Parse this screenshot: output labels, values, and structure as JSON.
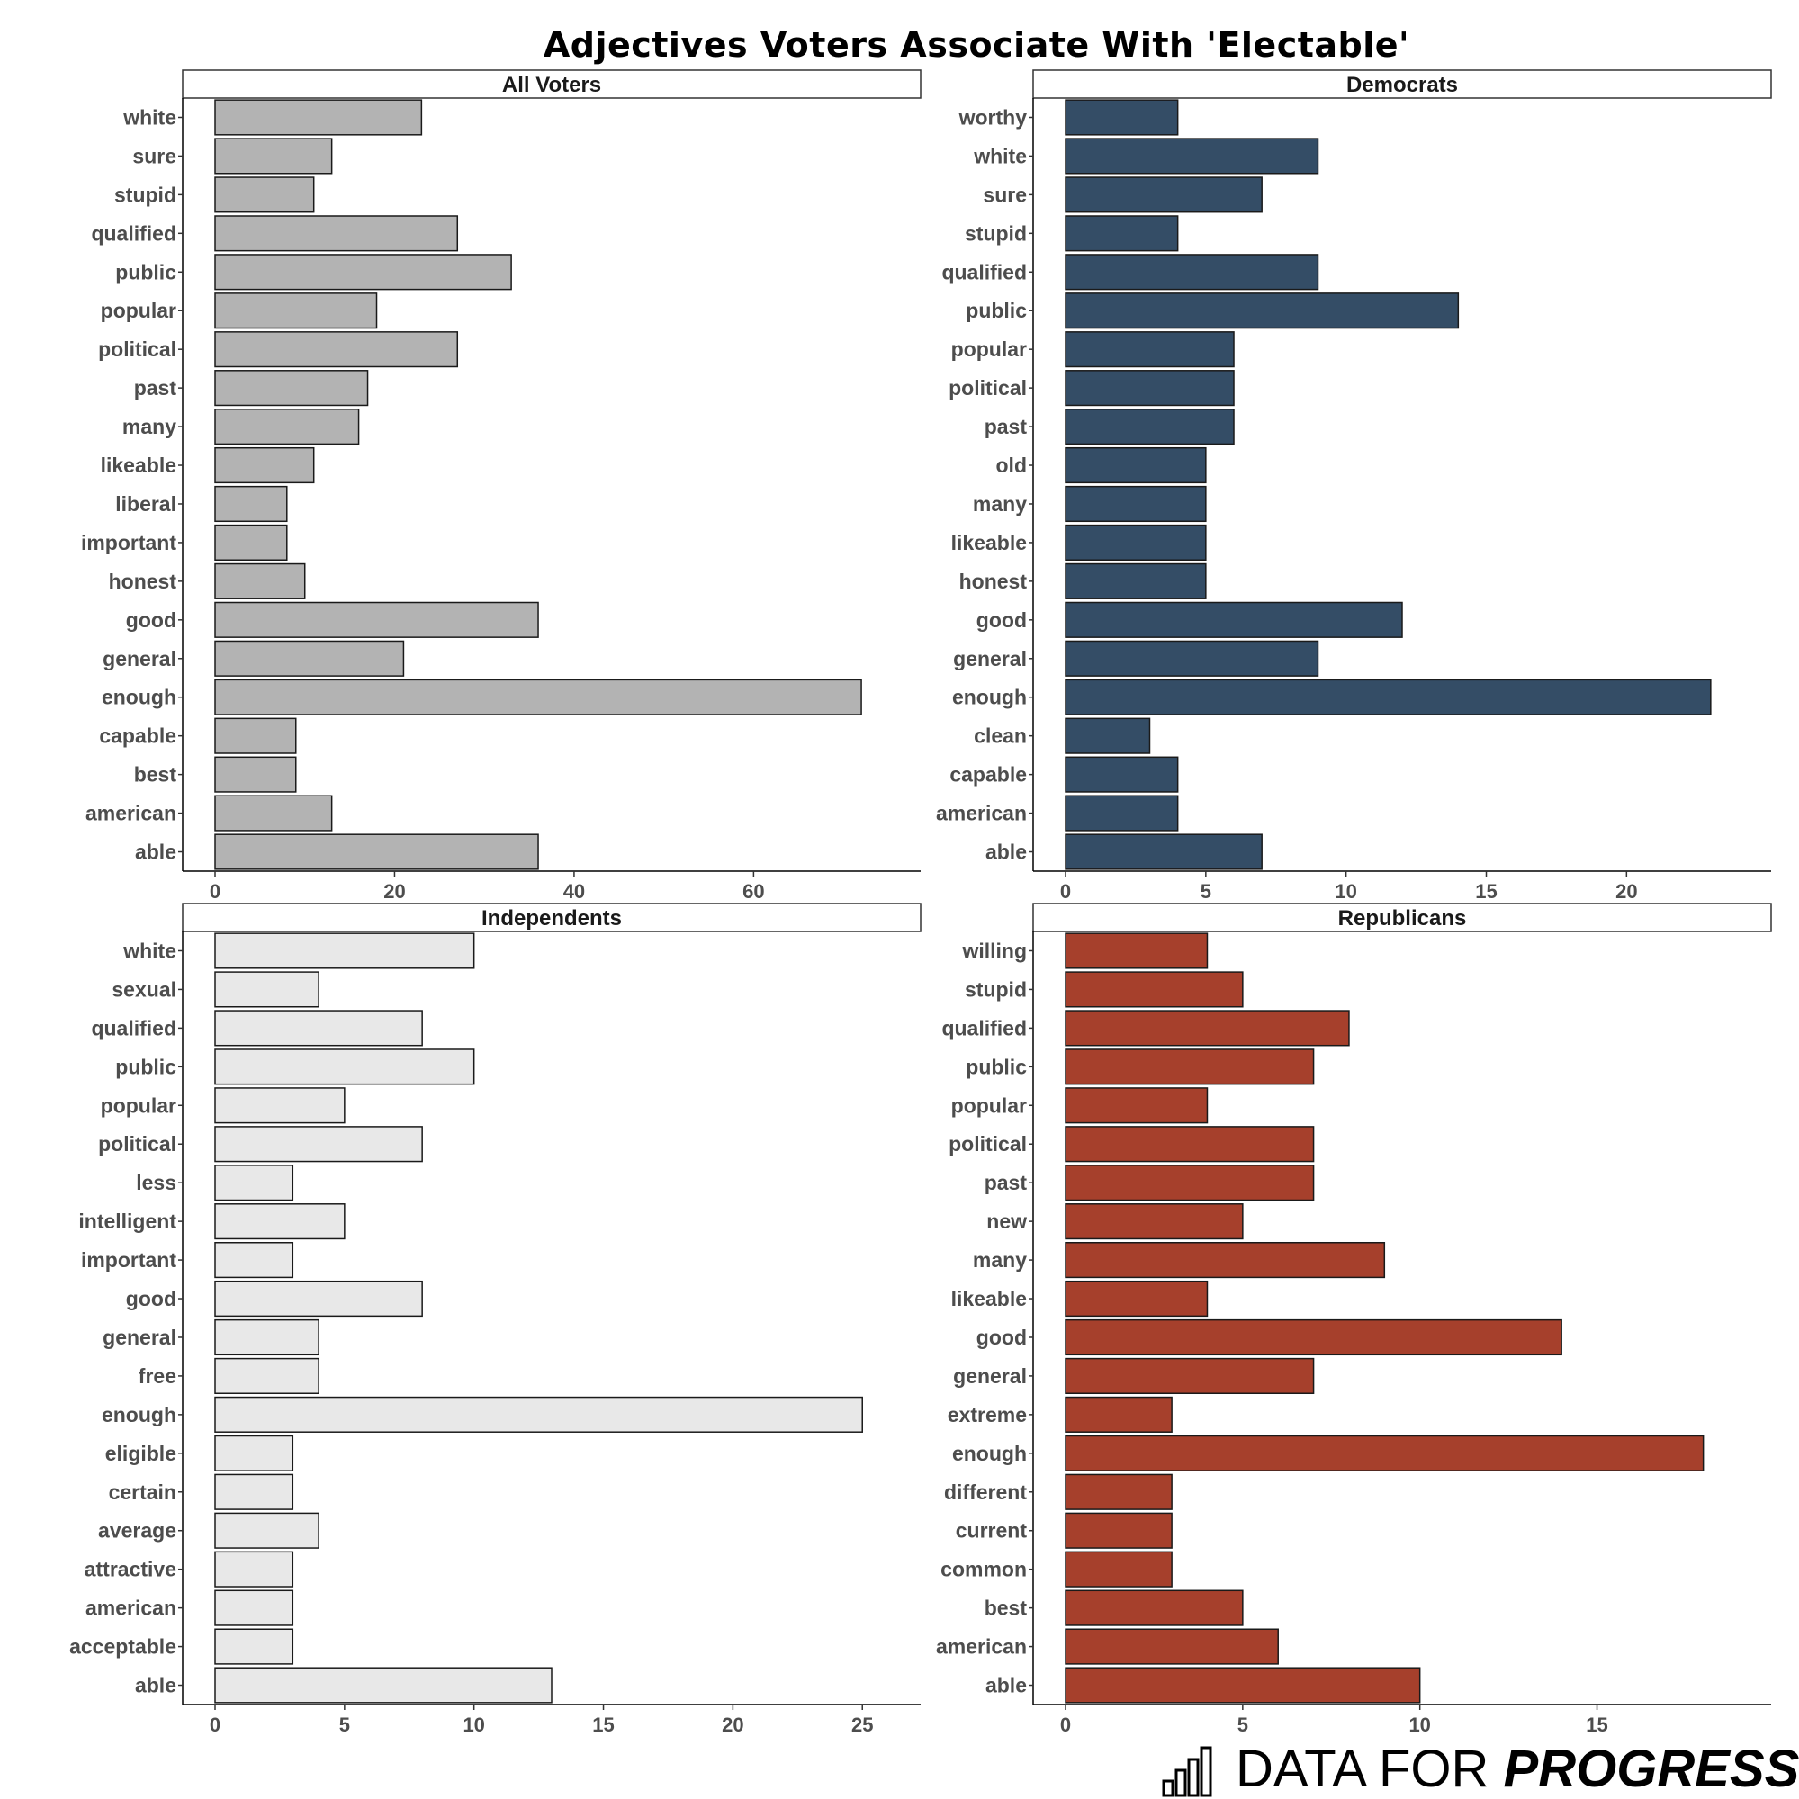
{
  "title": "Adjectives Voters Associate With 'Electable'",
  "logo": {
    "text_regular": "DATA FOR ",
    "text_bold": "PROGRESS"
  },
  "chart_data": [
    {
      "type": "bar",
      "orientation": "horizontal",
      "title": "All Voters",
      "color": "#b3b3b3",
      "xlim": [
        0,
        75
      ],
      "xticks": [
        0,
        20,
        40,
        60
      ],
      "categories": [
        "white",
        "sure",
        "stupid",
        "qualified",
        "public",
        "popular",
        "political",
        "past",
        "many",
        "likeable",
        "liberal",
        "important",
        "honest",
        "good",
        "general",
        "enough",
        "capable",
        "best",
        "american",
        "able"
      ],
      "values": [
        23,
        13,
        11,
        27,
        33,
        18,
        27,
        17,
        16,
        11,
        8,
        8,
        10,
        36,
        21,
        72,
        9,
        9,
        13,
        36
      ]
    },
    {
      "type": "bar",
      "orientation": "horizontal",
      "title": "Democrats",
      "color": "#344d66",
      "xlim": [
        0,
        24
      ],
      "xticks": [
        0,
        5,
        10,
        15,
        20
      ],
      "categories": [
        "worthy",
        "white",
        "sure",
        "stupid",
        "qualified",
        "public",
        "popular",
        "political",
        "past",
        "old",
        "many",
        "likeable",
        "honest",
        "good",
        "general",
        "enough",
        "clean",
        "capable",
        "american",
        "able"
      ],
      "values": [
        4,
        9,
        7,
        4,
        9,
        14,
        6,
        6,
        6,
        5,
        5,
        5,
        5,
        12,
        9,
        23,
        3,
        4,
        4,
        7
      ]
    },
    {
      "type": "bar",
      "orientation": "horizontal",
      "title": "Independents",
      "color": "#e8e8e8",
      "xlim": [
        0,
        26
      ],
      "xticks": [
        0,
        5,
        10,
        15,
        20,
        25
      ],
      "categories": [
        "white",
        "sexual",
        "qualified",
        "public",
        "popular",
        "political",
        "less",
        "intelligent",
        "important",
        "good",
        "general",
        "free",
        "enough",
        "eligible",
        "certain",
        "average",
        "attractive",
        "american",
        "acceptable",
        "able"
      ],
      "values": [
        10,
        4,
        8,
        10,
        5,
        8,
        3,
        5,
        3,
        8,
        4,
        4,
        25,
        3,
        3,
        4,
        3,
        3,
        3,
        13
      ]
    },
    {
      "type": "bar",
      "orientation": "horizontal",
      "title": "Republicans",
      "color": "#a6402c",
      "xlim": [
        0,
        19
      ],
      "xticks": [
        0,
        5,
        10,
        15
      ],
      "categories": [
        "willing",
        "stupid",
        "qualified",
        "public",
        "popular",
        "political",
        "past",
        "new",
        "many",
        "likeable",
        "good",
        "general",
        "extreme",
        "enough",
        "different",
        "current",
        "common",
        "best",
        "american",
        "able"
      ],
      "values": [
        4,
        5,
        8,
        7,
        4,
        7,
        7,
        5,
        9,
        4,
        14,
        7,
        3,
        18,
        3,
        3,
        3,
        5,
        6,
        10
      ]
    }
  ]
}
